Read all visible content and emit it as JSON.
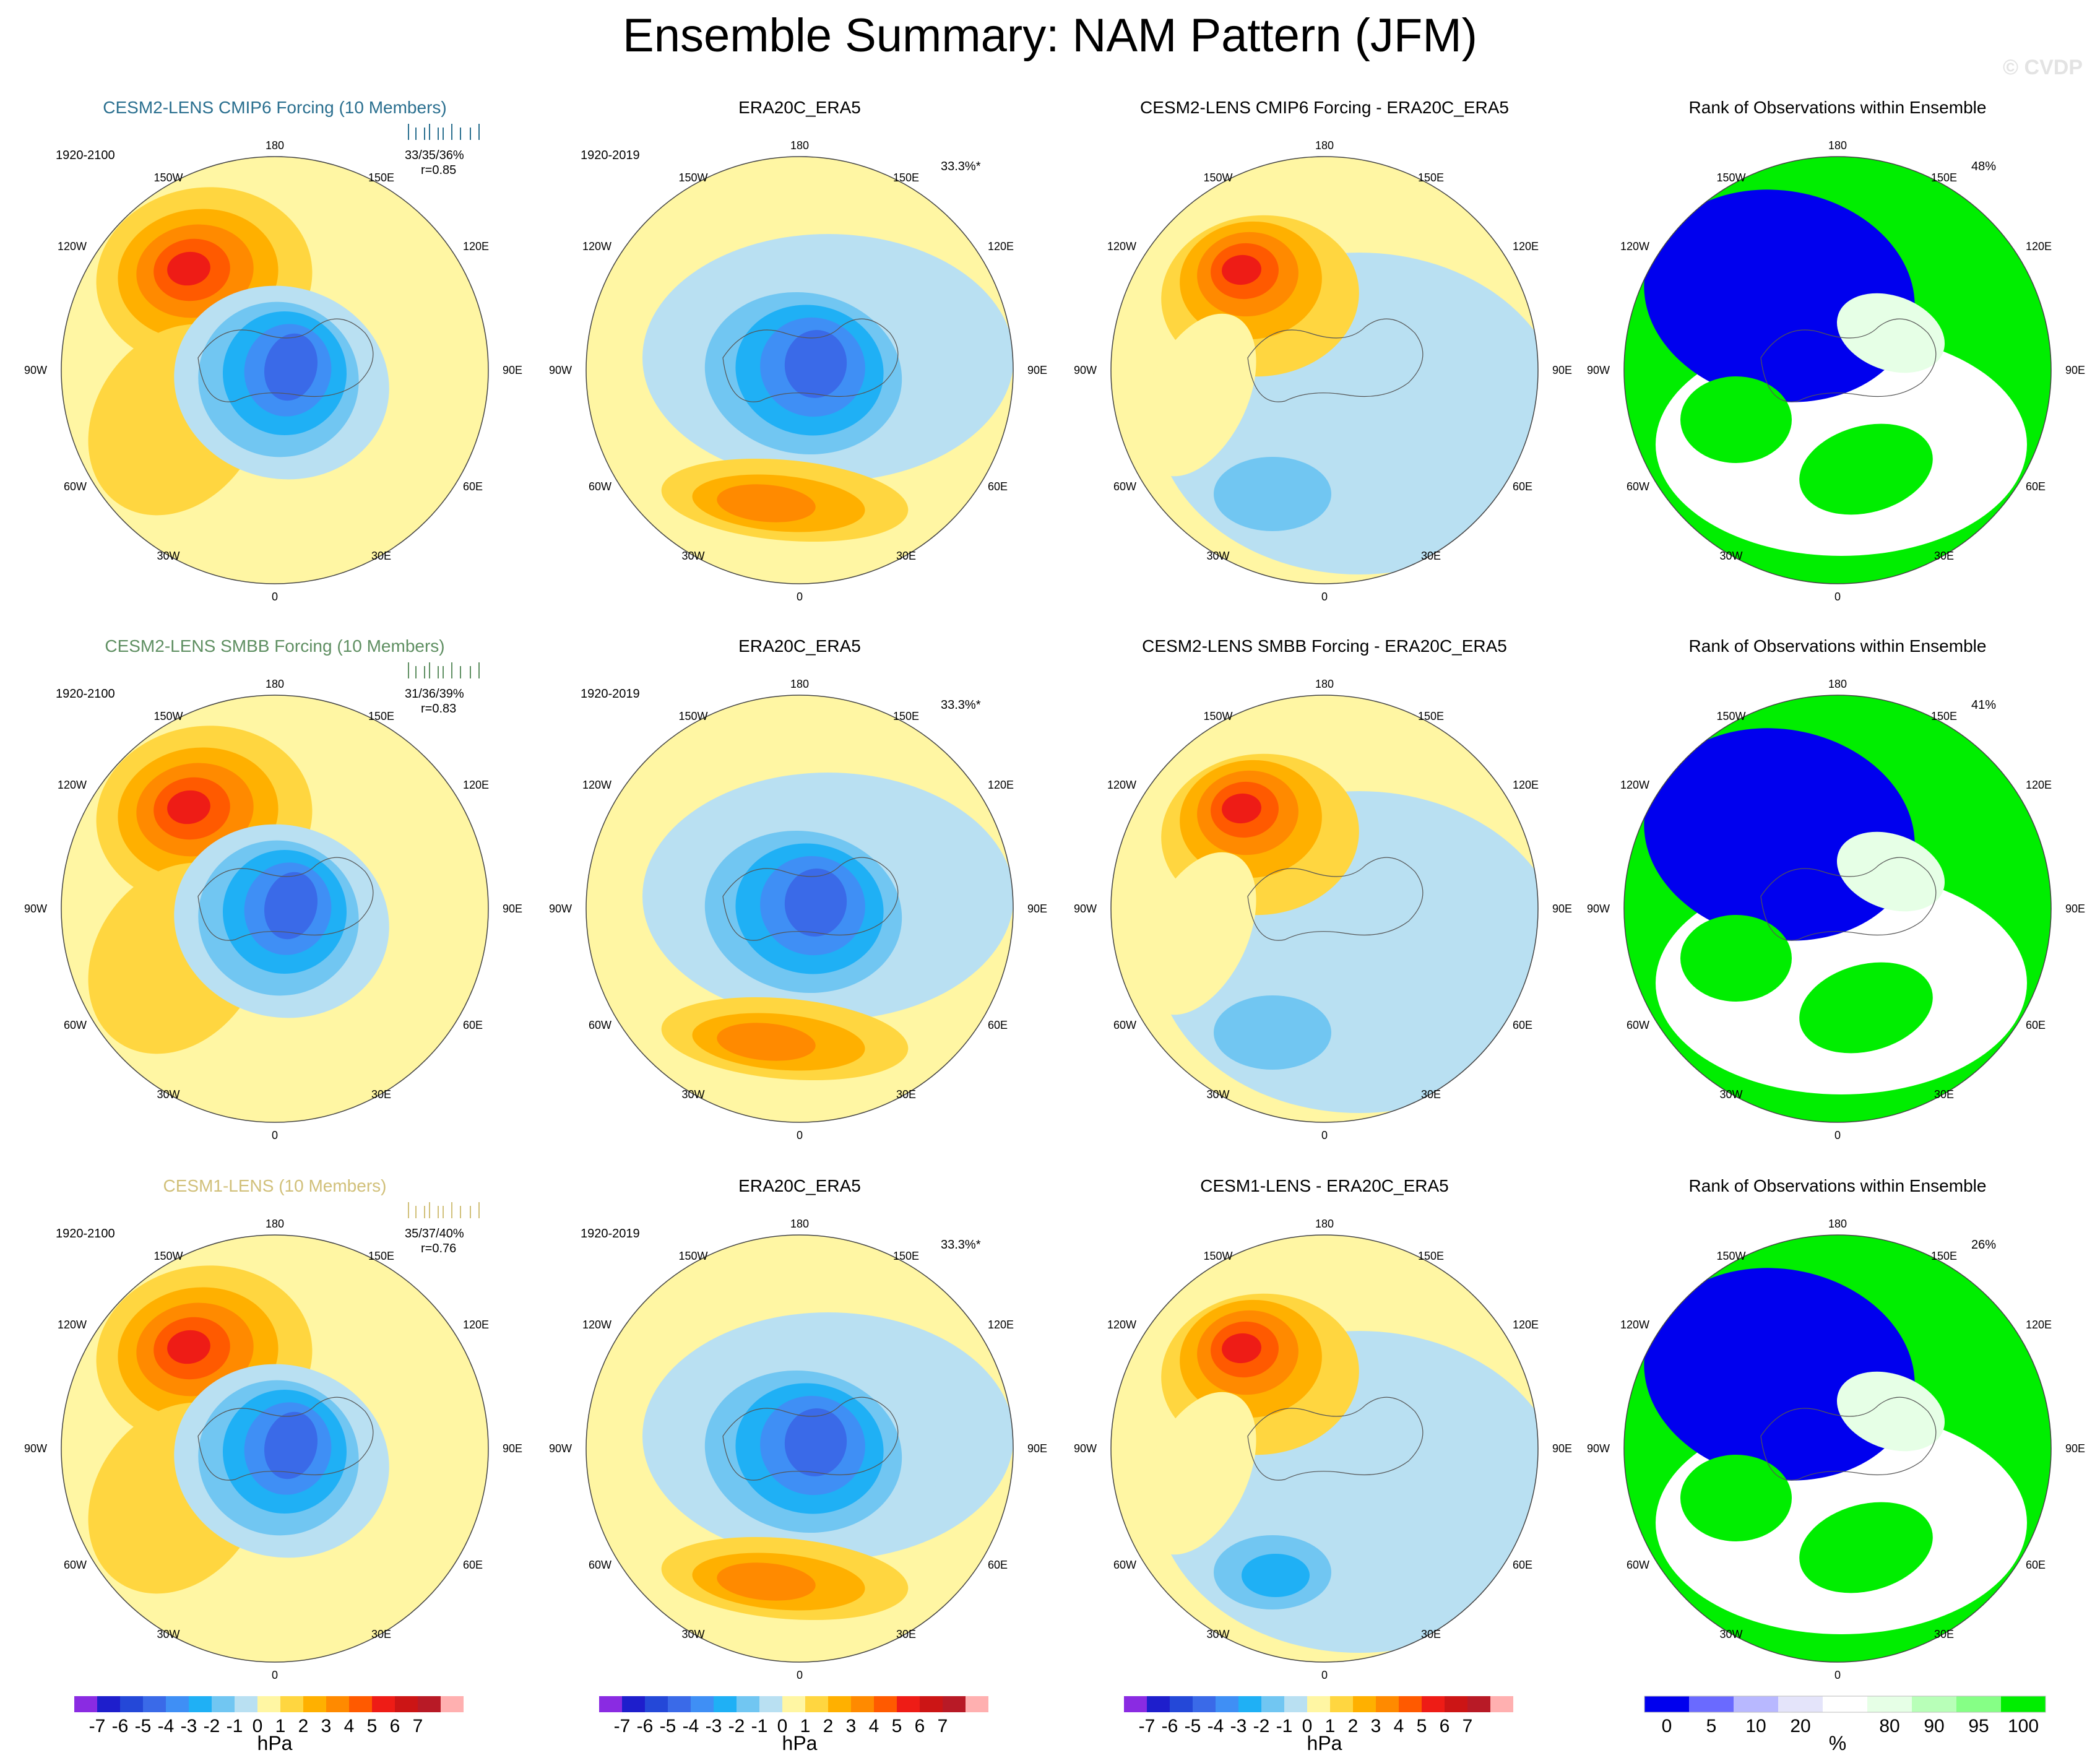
{
  "title": "Ensemble Summary: NAM Pattern (JFM)",
  "watermark": "© CVDP",
  "rows": [
    {
      "ensemble": {
        "title": "CESM2-LENS CMIP6 Forcing (10 Members)",
        "title_color": "#2a6f8f",
        "period": "1920-2100",
        "pcts": "33/35/36%",
        "r": "r=0.85"
      },
      "obs": {
        "title": "ERA20C_ERA5",
        "period": "1920-2019",
        "pct": "33.3%*"
      },
      "diff": {
        "title": "CESM2-LENS CMIP6 Forcing - ERA20C_ERA5"
      },
      "rank": {
        "title": "Rank of Observations within Ensemble",
        "pct": "48%"
      }
    },
    {
      "ensemble": {
        "title": "CESM2-LENS SMBB Forcing (10 Members)",
        "title_color": "#5f8f62",
        "period": "1920-2100",
        "pcts": "31/36/39%",
        "r": "r=0.83"
      },
      "obs": {
        "title": "ERA20C_ERA5",
        "period": "1920-2019",
        "pct": "33.3%*"
      },
      "diff": {
        "title": "CESM2-LENS SMBB Forcing - ERA20C_ERA5"
      },
      "rank": {
        "title": "Rank of Observations within Ensemble",
        "pct": "41%"
      }
    },
    {
      "ensemble": {
        "title": "CESM1-LENS (10 Members)",
        "title_color": "#d1c07a",
        "period": "1920-2100",
        "pcts": "35/37/40%",
        "r": "r=0.76"
      },
      "obs": {
        "title": "ERA20C_ERA5",
        "period": "1920-2019",
        "pct": "33.3%*"
      },
      "diff": {
        "title": "CESM1-LENS - ERA20C_ERA5"
      },
      "rank": {
        "title": "Rank of Observations within Ensemble",
        "pct": "26%"
      }
    }
  ],
  "map_labels": {
    "top": "180",
    "bottom": "0",
    "left": "90W",
    "right": "90E",
    "ul1": "150W",
    "ul2": "120W",
    "ur1": "150E",
    "ur2": "120E",
    "ll1": "60W",
    "ll2": "30W",
    "lr1": "60E",
    "lr2": "30E"
  },
  "colors": {
    "hpa_scale": [
      "#8a2be2",
      "#1e1ecc",
      "#2448d8",
      "#3a6ae8",
      "#3f8ff5",
      "#1fb0f5",
      "#71c6f2",
      "#b9e0f2",
      "#fff6a3",
      "#ffd640",
      "#ffb000",
      "#ff8a00",
      "#ff5a00",
      "#ee1c16",
      "#cc1515",
      "#b81a26",
      "#ffb0b0"
    ],
    "rank_scale": [
      "#0000ee",
      "#6a6aff",
      "#b8b8ff",
      "#e4e4fa",
      "#ffffff",
      "#e6ffe6",
      "#b8ffb8",
      "#86ff86",
      "#00ee00"
    ]
  },
  "colorbars": {
    "hpa": {
      "units": "hPa",
      "ticks": [
        "-7",
        "-6",
        "-5",
        "-4",
        "-3",
        "-2",
        "-1",
        "0",
        "1",
        "2",
        "3",
        "4",
        "5",
        "6",
        "7"
      ]
    },
    "rank": {
      "units": "%",
      "ticks": [
        "0",
        "5",
        "10",
        "20",
        "80",
        "90",
        "95",
        "100"
      ]
    }
  }
}
